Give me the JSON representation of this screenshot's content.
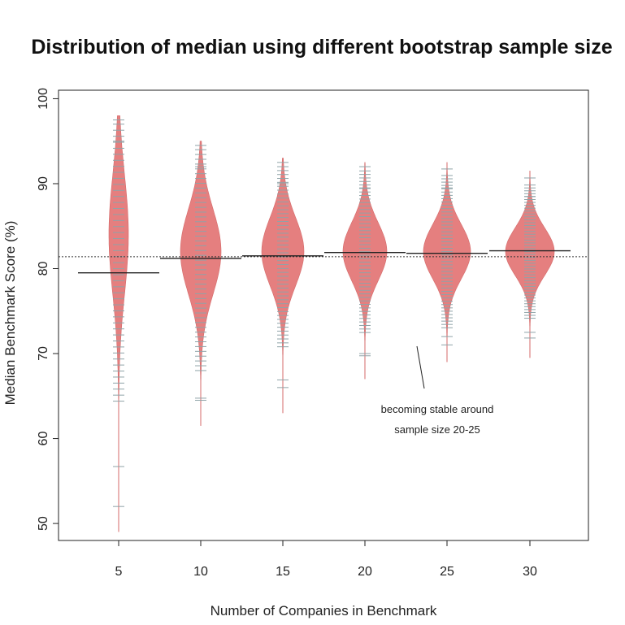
{
  "chart_data": {
    "type": "beanplot",
    "title": "Distribution of median using different bootstrap sample size",
    "xlabel": "Number of Companies in Benchmark",
    "ylabel": "Median Benchmark Score (%)",
    "ylim": [
      48,
      101
    ],
    "yticks": [
      50,
      60,
      70,
      80,
      90,
      100
    ],
    "categories": [
      "5",
      "10",
      "15",
      "20",
      "25",
      "30"
    ],
    "overall_median": 81.4,
    "beans": [
      {
        "category": "5",
        "median": 79.5,
        "min": 49,
        "max": 98,
        "peak": 84,
        "sd": 7.0,
        "max_half_width": 12
      },
      {
        "category": "10",
        "median": 81.2,
        "min": 61.5,
        "max": 95,
        "peak": 82,
        "sd": 5.0,
        "max_half_width": 25
      },
      {
        "category": "15",
        "median": 81.5,
        "min": 63,
        "max": 93,
        "peak": 82,
        "sd": 4.0,
        "max_half_width": 26
      },
      {
        "category": "20",
        "median": 81.9,
        "min": 67,
        "max": 92.5,
        "peak": 82,
        "sd": 3.4,
        "max_half_width": 27
      },
      {
        "category": "25",
        "median": 81.8,
        "min": 69,
        "max": 92.5,
        "peak": 82,
        "sd": 3.2,
        "max_half_width": 29
      },
      {
        "category": "30",
        "median": 82.1,
        "min": 69.5,
        "max": 91.5,
        "peak": 82,
        "sd": 2.8,
        "max_half_width": 30
      }
    ],
    "annotation": {
      "lines": [
        "becoming  stable around",
        "sample size 20-25"
      ]
    },
    "colors": {
      "bean_fill": "#e57f7f",
      "bean_stroke": "#d46a6a",
      "rug": "#8fa3a8",
      "median_line": "#222222",
      "reference_line": "#333333"
    }
  }
}
